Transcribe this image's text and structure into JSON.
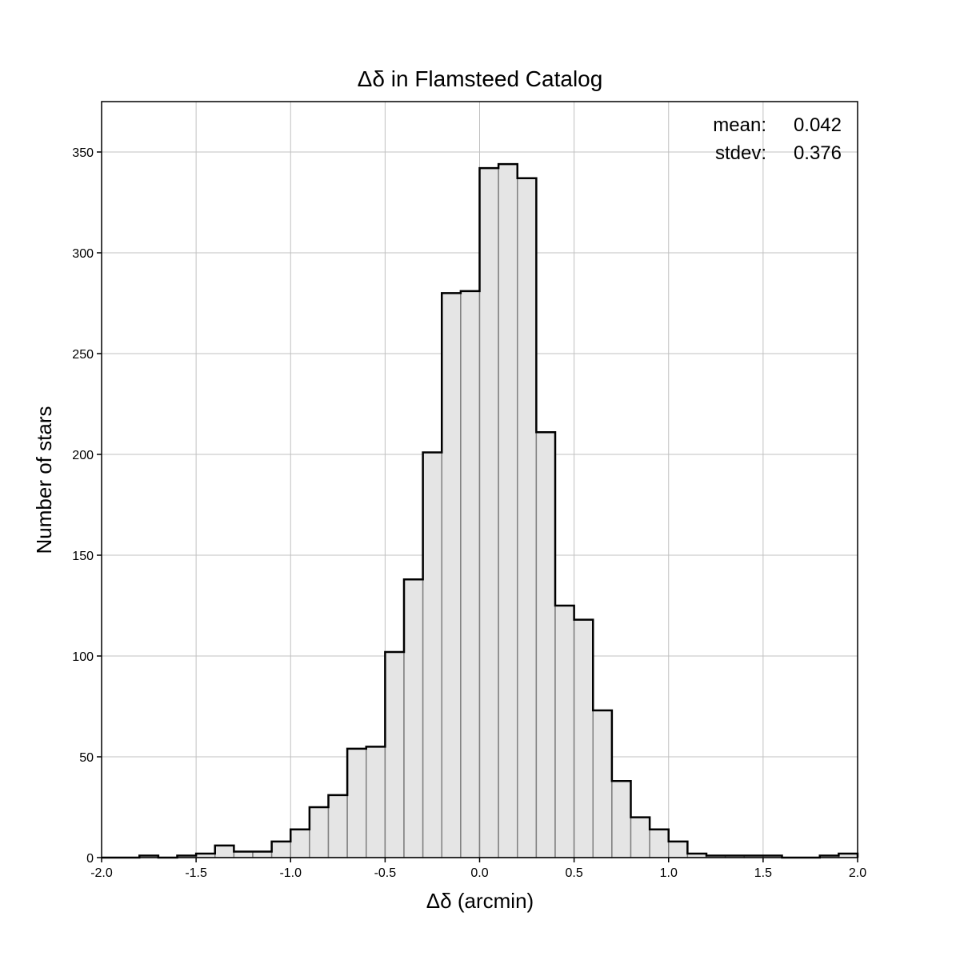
{
  "chart_data": {
    "type": "bar",
    "title": "Δδ in Flamsteed Catalog",
    "xlabel": "Δδ (arcmin)",
    "ylabel": "Number of stars",
    "xlim": [
      -2.0,
      2.0
    ],
    "ylim": [
      0,
      375
    ],
    "bin_width": 0.1,
    "bin_starts": [
      -2.0,
      -1.9,
      -1.8,
      -1.7,
      -1.6,
      -1.5,
      -1.4,
      -1.3,
      -1.2,
      -1.1,
      -1.0,
      -0.9,
      -0.8,
      -0.7,
      -0.6,
      -0.5,
      -0.4,
      -0.3,
      -0.2,
      -0.1,
      0.0,
      0.1,
      0.2,
      0.3,
      0.4,
      0.5,
      0.6,
      0.7,
      0.8,
      0.9,
      1.0,
      1.1,
      1.2,
      1.3,
      1.4,
      1.5,
      1.6,
      1.7,
      1.8,
      1.9
    ],
    "counts": [
      0,
      0,
      1,
      0,
      1,
      2,
      6,
      3,
      3,
      8,
      14,
      25,
      31,
      54,
      55,
      102,
      138,
      201,
      280,
      281,
      342,
      344,
      337,
      211,
      125,
      118,
      73,
      38,
      20,
      14,
      8,
      2,
      1,
      1,
      1,
      1,
      0,
      0,
      1,
      2
    ],
    "x_ticks": [
      "-2.0",
      "-1.5",
      "-1.0",
      "-0.5",
      "0.0",
      "0.5",
      "1.0",
      "1.5",
      "2.0"
    ],
    "x_tick_values": [
      -2.0,
      -1.5,
      -1.0,
      -0.5,
      0.0,
      0.5,
      1.0,
      1.5,
      2.0
    ],
    "y_ticks": [
      "0",
      "50",
      "100",
      "150",
      "200",
      "250",
      "300",
      "350"
    ],
    "y_tick_values": [
      0,
      50,
      100,
      150,
      200,
      250,
      300,
      350
    ],
    "grid": true,
    "annotations": [
      {
        "label": "mean:",
        "value": "0.042"
      },
      {
        "label": "stdev:",
        "value": "0.376"
      }
    ],
    "colors": {
      "bar_fill": "#e5e5e5",
      "bar_edge": "#808080",
      "outline": "#000000",
      "grid": "#c0c0c0"
    }
  }
}
